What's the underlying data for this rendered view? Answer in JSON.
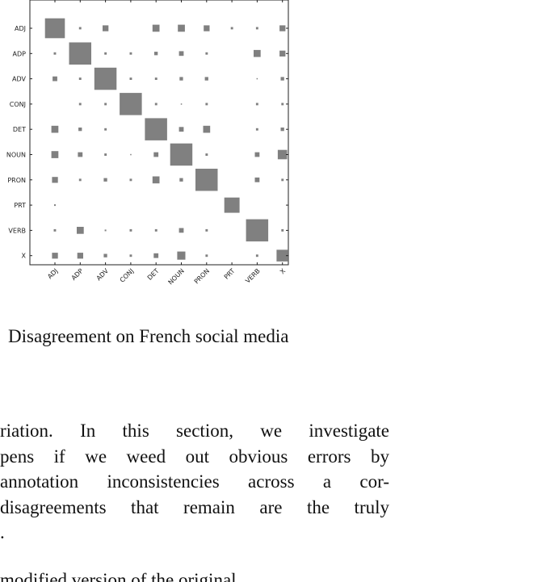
{
  "chart_data": {
    "type": "heatmap",
    "title": "",
    "xlabel": "",
    "ylabel": "",
    "x": [
      "ADJ",
      "ADP",
      "ADV",
      "CONJ",
      "DET",
      "NOUN",
      "PRON",
      "PRT",
      "VERB",
      "X"
    ],
    "y": [
      "ADJ",
      "ADP",
      "ADV",
      "CONJ",
      "DET",
      "NOUN",
      "PRON",
      "PRT",
      "VERB",
      "X"
    ],
    "grid": false,
    "values": [
      [
        0.85,
        0.1,
        0.25,
        0,
        0.3,
        0.3,
        0.25,
        0.1,
        0.1,
        0.25
      ],
      [
        0.1,
        0.95,
        0.1,
        0.1,
        0.15,
        0.2,
        0.1,
        0,
        0.3,
        0.25
      ],
      [
        0.2,
        0.1,
        0.95,
        0.1,
        0.1,
        0.15,
        0.15,
        0,
        0.05,
        0.15
      ],
      [
        0,
        0.1,
        0.1,
        0.95,
        0.1,
        0.03,
        0.1,
        0,
        0.1,
        0.1
      ],
      [
        0.3,
        0.15,
        0.1,
        0,
        0.95,
        0.2,
        0.3,
        0,
        0.1,
        0.15
      ],
      [
        0.3,
        0.2,
        0.1,
        0.03,
        0.2,
        0.95,
        0.1,
        0,
        0.2,
        0.4
      ],
      [
        0.25,
        0.1,
        0.15,
        0.1,
        0.3,
        0.15,
        0.95,
        0,
        0.2,
        0.1
      ],
      [
        0.07,
        0,
        0,
        0,
        0,
        0,
        0,
        0.65,
        0,
        0
      ],
      [
        0.1,
        0.3,
        0.07,
        0.1,
        0.1,
        0.2,
        0.1,
        0,
        0.95,
        0.1
      ],
      [
        0.25,
        0.25,
        0.15,
        0.1,
        0.2,
        0.35,
        0.1,
        0,
        0.1,
        0.5
      ]
    ]
  },
  "caption": "Disagreement on French social media",
  "body_lines": [
    "riation.  In this section, we investigate",
    "pens if we weed out obvious errors by",
    "annotation inconsistencies across a cor-",
    "disagreements that remain are the truly",
    "."
  ],
  "cutoff_line": "modified version of the original"
}
